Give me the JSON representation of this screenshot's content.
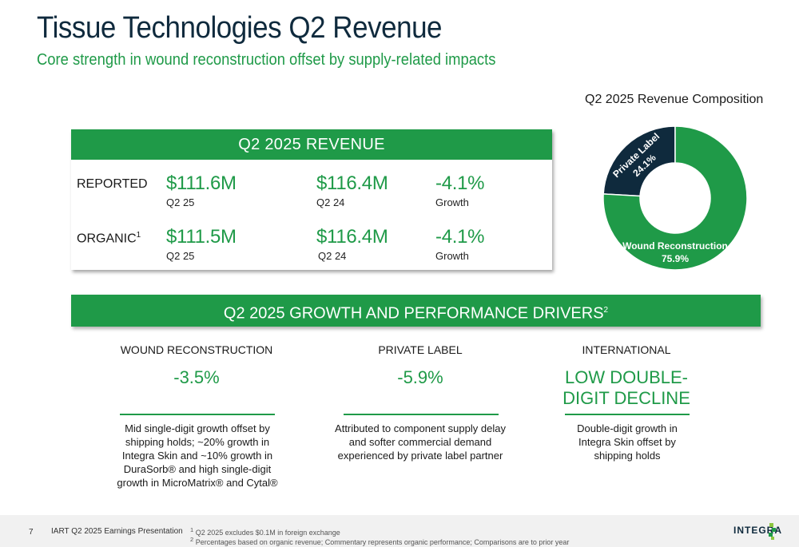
{
  "header": {
    "title": "Tissue Technologies Q2 Revenue",
    "subtitle": "Core strength in wound reconstruction offset by supply-related impacts"
  },
  "revenue": {
    "header": "Q2 2025 REVENUE",
    "reported": {
      "label": "REPORTED",
      "q2_25_value": "$111.6M",
      "q2_25_label": "Q2 25",
      "q2_24_value": "$116.4M",
      "q2_24_label": "Q2 24",
      "growth_value": "-4.1%",
      "growth_label": "Growth"
    },
    "organic": {
      "label": "ORGANIC",
      "label_sup": "1",
      "q2_25_value": "$111.5M",
      "q2_25_label": "Q2 25",
      "q2_24_value": "$116.4M",
      "q2_24_label": "Q2 24",
      "growth_value": "-4.1%",
      "growth_label": "Growth"
    }
  },
  "chart_data": {
    "type": "pie",
    "title": "Q2 2025 Revenue Composition",
    "donut": true,
    "slices": [
      {
        "name": "Wound Reconstruction",
        "label": "75.9%",
        "value": 75.9,
        "color": "#1f9a48"
      },
      {
        "name": "Private Label",
        "label": "24.1%",
        "value": 24.1,
        "color": "#0f2a3d"
      }
    ]
  },
  "drivers": {
    "header": "Q2 2025 GROWTH AND PERFORMANCE DRIVERS",
    "header_sup": "2",
    "columns": [
      {
        "title": "WOUND RECONSTRUCTION",
        "value": "-3.5%",
        "desc_lines": [
          "Mid single-digit growth offset by",
          "shipping holds; ~20% growth in",
          "Integra Skin and ~10% growth in",
          "DuraSorb® and high single-digit",
          "growth in MicroMatrix® and Cytal®"
        ]
      },
      {
        "title": "PRIVATE LABEL",
        "value": "-5.9%",
        "desc_lines": [
          "Attributed to component supply delay",
          "and softer commercial demand",
          "experienced by private label partner"
        ]
      },
      {
        "title": "INTERNATIONAL",
        "value_lines": [
          "LOW DOUBLE-",
          "DIGIT DECLINE"
        ],
        "desc_lines": [
          "Double-digit growth in",
          "Integra Skin offset by",
          "shipping holds"
        ]
      }
    ]
  },
  "footer": {
    "page": "7",
    "presentation": "IART Q2 2025 Earnings Presentation",
    "footnote1_sup": "1",
    "footnote1": "Q2 2025 excludes $0.1M in foreign exchange",
    "footnote2_sup": "2",
    "footnote2": "Percentages based on organic revenue; Commentary represents organic performance; Comparisons are to prior year",
    "logo": "INTEGRA"
  },
  "colors": {
    "accent": "#1f9a48",
    "navy": "#0f2a3d"
  }
}
